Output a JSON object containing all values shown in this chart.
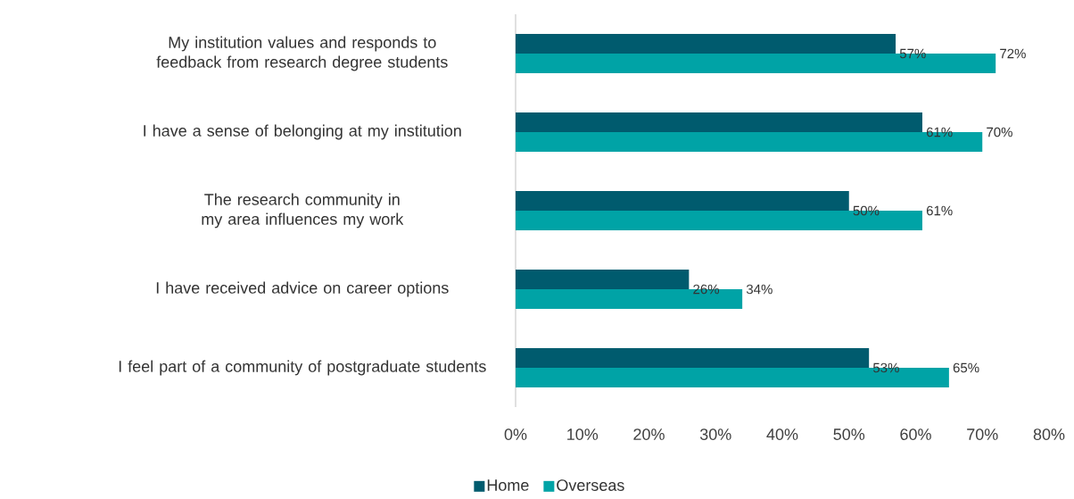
{
  "chart_data": {
    "type": "bar",
    "orientation": "horizontal",
    "categories": [
      "My institution values and responds to feedback from research degree students",
      "I have a sense of belonging at my institution",
      "The research community in my area influences my work",
      "I have received advice on career options",
      "I feel part of a community of postgraduate students"
    ],
    "series": [
      {
        "name": "Home",
        "color": "#005b6e",
        "values": [
          57,
          61,
          50,
          26,
          53
        ],
        "value_labels": [
          "57%",
          "61%",
          "50%",
          "26%",
          "53%"
        ]
      },
      {
        "name": "Overseas",
        "color": "#00a3a6",
        "values": [
          72,
          70,
          61,
          34,
          65
        ],
        "value_labels": [
          "72%",
          "70%",
          "61%",
          "34%",
          "65%"
        ]
      }
    ],
    "xlim": [
      0,
      80
    ],
    "xticks": [
      {
        "value": 0,
        "label": "0%"
      },
      {
        "value": 10,
        "label": "10%"
      },
      {
        "value": 20,
        "label": "20%"
      },
      {
        "value": 30,
        "label": "30%"
      },
      {
        "value": 40,
        "label": "40%"
      },
      {
        "value": 50,
        "label": "50%"
      },
      {
        "value": 60,
        "label": "60%"
      },
      {
        "value": 70,
        "label": "70%"
      },
      {
        "value": 80,
        "label": "80%"
      }
    ],
    "legend": "bottom",
    "grid": false
  }
}
